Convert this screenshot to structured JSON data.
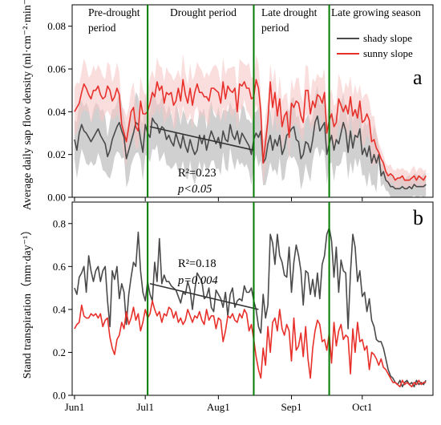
{
  "chart_data": [
    {
      "panel": "a",
      "type": "line",
      "ylabel": "Average daily sap flow density (ml·cm⁻²·min⁻¹)",
      "ylim": [
        0,
        0.09
      ],
      "yticks": [
        "0.00",
        "0.02",
        "0.04",
        "0.06",
        "0.08"
      ],
      "yticks_values": [
        0,
        0.02,
        0.04,
        0.06,
        0.08
      ],
      "legend_position": "top-right",
      "stat_r2": "R²=0.23",
      "stat_p": "p<0.05",
      "series": [
        {
          "name": "shady slope",
          "color": "#4a4a4a",
          "band_color": "#c8c8c8",
          "values": [
            0.027,
            0.022,
            0.03,
            0.034,
            0.031,
            0.03,
            0.028,
            0.026,
            0.028,
            0.03,
            0.032,
            0.029,
            0.027,
            0.025,
            0.019,
            0.022,
            0.027,
            0.03,
            0.033,
            0.035,
            0.031,
            0.028,
            0.018,
            0.022,
            0.026,
            0.03,
            0.035,
            0.034,
            0.027,
            0.021,
            0.034,
            0.03,
            0.028,
            0.037,
            0.035,
            0.034,
            0.03,
            0.033,
            0.032,
            0.027,
            0.029,
            0.026,
            0.024,
            0.03,
            0.026,
            0.023,
            0.029,
            0.024,
            0.021,
            0.027,
            0.023,
            0.02,
            0.022,
            0.029,
            0.025,
            0.029,
            0.022,
            0.027,
            0.031,
            0.028,
            0.025,
            0.028,
            0.023,
            0.031,
            0.027,
            0.026,
            0.034,
            0.029,
            0.027,
            0.031,
            0.025,
            0.03,
            0.028,
            0.026,
            0.024,
            0.02,
            0.027,
            0.03,
            0.028,
            0.031,
            0.016,
            0.018,
            0.025,
            0.029,
            0.022,
            0.027,
            0.024,
            0.029,
            0.02,
            0.023,
            0.029,
            0.03,
            0.032,
            0.033,
            0.027,
            0.026,
            0.018,
            0.02,
            0.026,
            0.025,
            0.021,
            0.027,
            0.035,
            0.038,
            0.031,
            0.033,
            0.035,
            0.02,
            0.025,
            0.029,
            0.022,
            0.027,
            0.025,
            0.03,
            0.035,
            0.031,
            0.021,
            0.031,
            0.023,
            0.029,
            0.028,
            0.032,
            0.02,
            0.023,
            0.019,
            0.024,
            0.016,
            0.02,
            0.016,
            0.02,
            0.01,
            0.012,
            0.008,
            0.007,
            0.005,
            0.005,
            0.004,
            0.004,
            0.004,
            0.005,
            0.004,
            0.004,
            0.005,
            0.004,
            0.006,
            0.005,
            0.005,
            0.005,
            0.005,
            0.006
          ]
        },
        {
          "name": "sunny slope",
          "color": "#e8302b",
          "band_color": "#f7c8c8",
          "values": [
            0.04,
            0.042,
            0.044,
            0.049,
            0.053,
            0.051,
            0.048,
            0.046,
            0.05,
            0.05,
            0.052,
            0.048,
            0.046,
            0.047,
            0.052,
            0.05,
            0.045,
            0.047,
            0.051,
            0.048,
            0.034,
            0.03,
            0.026,
            0.033,
            0.04,
            0.042,
            0.033,
            0.031,
            0.045,
            0.039,
            0.039,
            0.04,
            0.044,
            0.049,
            0.047,
            0.054,
            0.05,
            0.052,
            0.044,
            0.049,
            0.048,
            0.049,
            0.043,
            0.045,
            0.051,
            0.045,
            0.055,
            0.048,
            0.044,
            0.051,
            0.043,
            0.049,
            0.053,
            0.049,
            0.049,
            0.047,
            0.047,
            0.045,
            0.051,
            0.051,
            0.05,
            0.049,
            0.044,
            0.054,
            0.046,
            0.052,
            0.05,
            0.049,
            0.051,
            0.04,
            0.053,
            0.052,
            0.054,
            0.051,
            0.051,
            0.046,
            0.047,
            0.055,
            0.051,
            0.04,
            0.016,
            0.026,
            0.036,
            0.054,
            0.042,
            0.049,
            0.038,
            0.046,
            0.033,
            0.038,
            0.04,
            0.028,
            0.044,
            0.042,
            0.045,
            0.044,
            0.038,
            0.035,
            0.05,
            0.05,
            0.039,
            0.045,
            0.042,
            0.048,
            0.047,
            0.044,
            0.049,
            0.03,
            0.036,
            0.039,
            0.033,
            0.035,
            0.046,
            0.043,
            0.04,
            0.043,
            0.039,
            0.047,
            0.038,
            0.041,
            0.037,
            0.045,
            0.035,
            0.036,
            0.039,
            0.036,
            0.026,
            0.027,
            0.023,
            0.021,
            0.018,
            0.016,
            0.012,
            0.01,
            0.011,
            0.01,
            0.008,
            0.009,
            0.009,
            0.01,
            0.008,
            0.008,
            0.008,
            0.009,
            0.01,
            0.008,
            0.01,
            0.009,
            0.008,
            0.01
          ]
        }
      ],
      "trend": {
        "color": "#333333",
        "x_start": 32,
        "x_end": 76,
        "y_start": 0.033,
        "y_end": 0.022
      }
    },
    {
      "panel": "b",
      "type": "line",
      "ylabel": "Stand transpiration（mm·day⁻¹）",
      "ylim": [
        0,
        0.9
      ],
      "yticks": [
        "0.0",
        "0.2",
        "0.4",
        "0.6",
        "0.8"
      ],
      "yticks_values": [
        0,
        0.2,
        0.4,
        0.6,
        0.8
      ],
      "stat_r2": "R²=0.18",
      "stat_p": "p=0.004",
      "series": [
        {
          "name": "shady slope",
          "color": "#4a4a4a",
          "values": [
            0.5,
            0.47,
            0.55,
            0.57,
            0.6,
            0.48,
            0.65,
            0.58,
            0.53,
            0.58,
            0.6,
            0.53,
            0.58,
            0.6,
            0.44,
            0.32,
            0.58,
            0.54,
            0.6,
            0.45,
            0.52,
            0.48,
            0.33,
            0.47,
            0.55,
            0.62,
            0.6,
            0.76,
            0.58,
            0.48,
            0.44,
            0.53,
            0.47,
            0.44,
            0.62,
            0.53,
            0.73,
            0.52,
            0.56,
            0.53,
            0.53,
            0.51,
            0.5,
            0.49,
            0.46,
            0.43,
            0.48,
            0.47,
            0.53,
            0.49,
            0.4,
            0.49,
            0.57,
            0.55,
            0.53,
            0.45,
            0.46,
            0.5,
            0.41,
            0.39,
            0.49,
            0.47,
            0.45,
            0.41,
            0.48,
            0.37,
            0.47,
            0.5,
            0.41,
            0.44,
            0.45,
            0.44,
            0.51,
            0.48,
            0.48,
            0.5,
            0.44,
            0.4,
            0.32,
            0.29,
            0.47,
            0.36,
            0.42,
            0.75,
            0.71,
            0.61,
            0.75,
            0.65,
            0.62,
            0.56,
            0.55,
            0.69,
            0.48,
            0.62,
            0.7,
            0.65,
            0.58,
            0.42,
            0.58,
            0.57,
            0.47,
            0.54,
            0.46,
            0.57,
            0.45,
            0.61,
            0.65,
            0.75,
            0.78,
            0.72,
            0.55,
            0.69,
            0.48,
            0.63,
            0.58,
            0.57,
            0.31,
            0.57,
            0.75,
            0.69,
            0.53,
            0.58,
            0.46,
            0.48,
            0.39,
            0.45,
            0.35,
            0.32,
            0.26,
            0.25,
            0.25,
            0.22,
            0.17,
            0.12,
            0.09,
            0.08,
            0.06,
            0.05,
            0.07,
            0.04,
            0.06,
            0.07,
            0.05,
            0.06,
            0.04,
            0.07,
            0.05,
            0.06,
            0.05,
            0.07
          ]
        },
        {
          "name": "sunny slope",
          "color": "#e8302b",
          "values": [
            0.31,
            0.33,
            0.34,
            0.42,
            0.37,
            0.36,
            0.36,
            0.38,
            0.37,
            0.38,
            0.36,
            0.38,
            0.32,
            0.35,
            0.36,
            0.27,
            0.22,
            0.19,
            0.26,
            0.28,
            0.34,
            0.31,
            0.39,
            0.33,
            0.36,
            0.41,
            0.35,
            0.38,
            0.3,
            0.34,
            0.4,
            0.36,
            0.38,
            0.44,
            0.4,
            0.37,
            0.39,
            0.34,
            0.38,
            0.37,
            0.41,
            0.4,
            0.36,
            0.39,
            0.34,
            0.36,
            0.33,
            0.35,
            0.4,
            0.37,
            0.34,
            0.37,
            0.36,
            0.39,
            0.35,
            0.33,
            0.4,
            0.35,
            0.37,
            0.37,
            0.31,
            0.36,
            0.35,
            0.25,
            0.3,
            0.37,
            0.36,
            0.38,
            0.35,
            0.34,
            0.38,
            0.36,
            0.4,
            0.38,
            0.3,
            0.33,
            0.26,
            0.18,
            0.12,
            0.08,
            0.22,
            0.14,
            0.32,
            0.2,
            0.34,
            0.36,
            0.3,
            0.4,
            0.31,
            0.28,
            0.33,
            0.3,
            0.16,
            0.36,
            0.21,
            0.23,
            0.29,
            0.18,
            0.32,
            0.17,
            0.08,
            0.22,
            0.3,
            0.35,
            0.33,
            0.25,
            0.26,
            0.21,
            0.29,
            0.15,
            0.34,
            0.23,
            0.3,
            0.33,
            0.26,
            0.28,
            0.27,
            0.1,
            0.31,
            0.2,
            0.34,
            0.25,
            0.26,
            0.21,
            0.23,
            0.12,
            0.2,
            0.19,
            0.17,
            0.14,
            0.17,
            0.13,
            0.12,
            0.1,
            0.08,
            0.06,
            0.06,
            0.05,
            0.04,
            0.07,
            0.05,
            0.06,
            0.05,
            0.04,
            0.06,
            0.05,
            0.07,
            0.05,
            0.06,
            0.06
          ]
        }
      ],
      "trend": {
        "color": "#333333",
        "x_start": 32,
        "x_end": 78,
        "y_start": 0.52,
        "y_end": 0.4
      }
    }
  ],
  "x_axis": {
    "start_date": "Jun1",
    "domain": [
      -1,
      152
    ],
    "ticks": [
      {
        "label": "Jun1",
        "value": 0
      },
      {
        "label": "Jul1",
        "value": 30
      },
      {
        "label": "Aug1",
        "value": 61
      },
      {
        "label": "Sep1",
        "value": 92
      },
      {
        "label": "Oct1",
        "value": 122
      }
    ]
  },
  "periods": {
    "divider_color": "#007a00",
    "dividers": [
      31,
      76,
      108
    ],
    "labels": [
      {
        "line1": "Pre-drought",
        "line2": "period"
      },
      {
        "line1": "Drought period",
        "line2": ""
      },
      {
        "line1": "Late drought",
        "line2": "period"
      },
      {
        "line1": "Late growing season",
        "line2": ""
      }
    ]
  },
  "panel_letters": {
    "a": "a",
    "b": "b"
  }
}
